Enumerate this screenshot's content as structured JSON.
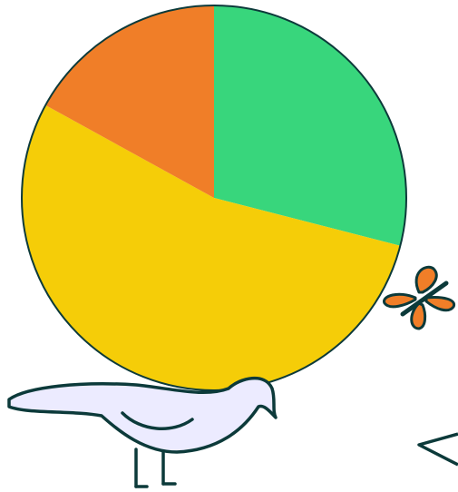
{
  "chart_data": {
    "type": "pie",
    "categories": [
      null,
      null,
      null
    ],
    "values": [
      29,
      54,
      17
    ],
    "colors": [
      "#38d67c",
      "#f5cd08",
      "#f07e28"
    ]
  }
}
